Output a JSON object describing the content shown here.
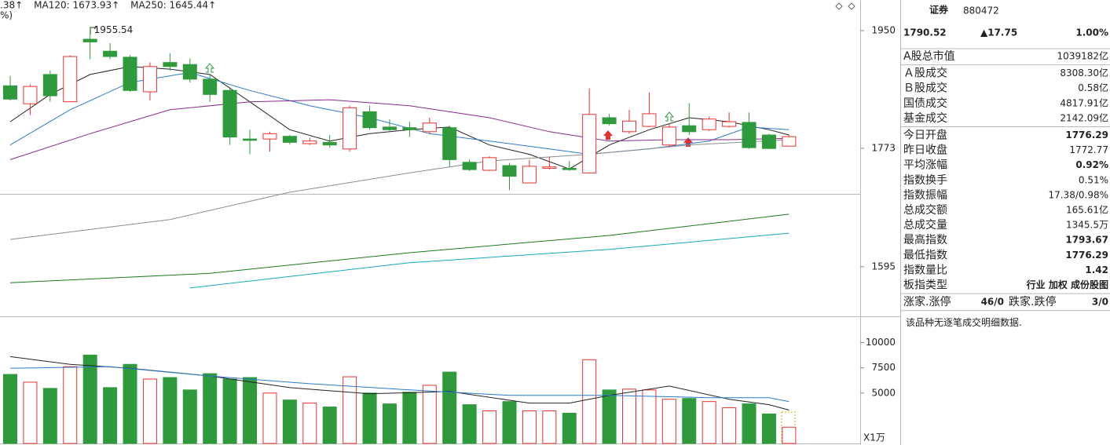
{
  "header": {
    "items": [
      {
        "text": ".38↑",
        "color": "#c03030"
      },
      {
        "text": "MA120: 1673.93↑",
        "color": "#1a7a1a"
      },
      {
        "text": "MA250: 1645.44↑",
        "color": "#17a9b8"
      }
    ],
    "subline": "%)"
  },
  "chart_data": [
    {
      "type": "candlestick",
      "open": [
        1867,
        1840,
        1884,
        1843,
        1937,
        1919,
        1910,
        1858,
        1902,
        1899,
        1877,
        1860,
        1787,
        1787,
        1791,
        1780,
        1782,
        1772,
        1828,
        1805,
        1804,
        1798,
        1804,
        1752,
        1740,
        1747,
        1721,
        1743,
        1743,
        1736,
        1819,
        1798,
        1806,
        1778,
        1807,
        1801,
        1806,
        1812,
        1793,
        1776.29
      ],
      "high": [
        1882,
        1869,
        1890,
        1913,
        1955.54,
        1931,
        1913,
        1902,
        1916,
        1908,
        1884,
        1863,
        1801,
        1798,
        1793,
        1789,
        1793,
        1837,
        1837,
        1817,
        1813,
        1819,
        1807,
        1756,
        1761,
        1751,
        1756,
        1760,
        1754,
        1863,
        1825,
        1831,
        1857,
        1810,
        1841,
        1821,
        1827,
        1827,
        1795,
        1793.67
      ],
      "low": [
        1845,
        1823,
        1843,
        1843,
        1907,
        1907,
        1858,
        1845,
        1890,
        1872,
        1843,
        1778,
        1764,
        1768,
        1779,
        1778,
        1774,
        1768,
        1801,
        1799,
        1790,
        1795,
        1745,
        1739,
        1739,
        1710,
        1721,
        1741,
        1739,
        1735,
        1807,
        1795,
        1805,
        1775,
        1793,
        1799,
        1804,
        1772,
        1772,
        1776.29
      ],
      "close": [
        1847,
        1866,
        1852,
        1911,
        1933,
        1911,
        1860,
        1896,
        1896,
        1877,
        1854,
        1790,
        1785,
        1795,
        1782,
        1784,
        1778,
        1834,
        1804,
        1801,
        1801,
        1811,
        1756,
        1741,
        1759,
        1731,
        1746,
        1745,
        1741,
        1824,
        1810,
        1814,
        1825,
        1805,
        1798,
        1817,
        1813,
        1774,
        1772.77,
        1790.52
      ],
      "up_color": "#e8312f",
      "down_color": "#2f9a3c",
      "ylim": [
        1524,
        1996
      ],
      "yticks": [
        1595,
        1773,
        1950
      ],
      "series": [
        {
          "color": "#222222",
          "x": [
            0,
            2,
            4,
            6,
            8,
            10,
            12,
            14,
            16,
            18,
            20,
            22,
            24,
            26,
            28,
            30,
            32,
            34,
            36,
            38,
            39
          ],
          "values": [
            1813,
            1854,
            1884,
            1896,
            1892,
            1884,
            1843,
            1801,
            1784,
            1795,
            1801,
            1805,
            1778,
            1764,
            1742,
            1778,
            1801,
            1819,
            1813,
            1801,
            1793
          ]
        },
        {
          "color": "#2b7bd0",
          "x": [
            0,
            3,
            6,
            9,
            12,
            15,
            18,
            21,
            24,
            27,
            29,
            32,
            35,
            37,
            39
          ],
          "values": [
            1778,
            1831,
            1872,
            1887,
            1860,
            1837,
            1819,
            1795,
            1784,
            1772,
            1764,
            1772,
            1784,
            1805,
            1801
          ]
        },
        {
          "color": "#8a2a8a",
          "x": [
            0,
            4,
            8,
            12,
            16,
            20,
            24,
            27,
            30,
            33,
            36,
            39
          ],
          "values": [
            1756,
            1795,
            1831,
            1843,
            1846,
            1837,
            1819,
            1798,
            1784,
            1786,
            1786,
            1788
          ]
        },
        {
          "color": "#8c8c8c",
          "x": [
            0,
            8,
            14,
            20,
            24,
            29,
            34,
            39
          ],
          "values": [
            1636,
            1666,
            1707,
            1736,
            1754,
            1764,
            1778,
            1786
          ]
        },
        {
          "color": "#1a7a1a",
          "x": [
            0,
            10,
            20,
            30,
            39
          ],
          "values": [
            1571,
            1585,
            1616,
            1642,
            1673.93
          ]
        },
        {
          "color": "#17a9b8",
          "x": [
            9,
            20,
            30,
            39
          ],
          "values": [
            1563,
            1601,
            1621,
            1645.44
          ]
        }
      ]
    },
    {
      "type": "bar",
      "values": [
        6846,
        6077,
        5461,
        7615,
        8769,
        5538,
        7846,
        6384,
        6538,
        5308,
        6923,
        6384,
        6538,
        5000,
        4308,
        4000,
        3615,
        6615,
        5000,
        3923,
        5077,
        5769,
        7077,
        3846,
        3231,
        4154,
        3231,
        3231,
        3000,
        8308,
        5308,
        5385,
        5308,
        4385,
        4462,
        4154,
        3538,
        3923,
        2923,
        1615
      ],
      "ylim": [
        0,
        12460
      ],
      "yticks": [
        5000,
        7500,
        10000
      ],
      "unit_label": "X1万",
      "series": [
        {
          "color": "#222222",
          "x": [
            0,
            3,
            6,
            10,
            14,
            18,
            22,
            26,
            28,
            30,
            33,
            36,
            38,
            39
          ],
          "values": [
            8615,
            7846,
            7461,
            6692,
            5538,
            4923,
            5154,
            4000,
            4000,
            4769,
            5692,
            4385,
            3846,
            3308
          ]
        },
        {
          "color": "#2b7bd0",
          "x": [
            0,
            5,
            10,
            15,
            20,
            25,
            30,
            35,
            38,
            39
          ],
          "values": [
            7461,
            7615,
            6692,
            5923,
            5308,
            4769,
            4769,
            4538,
            4538,
            4154
          ]
        }
      ]
    }
  ],
  "panel": {
    "name": "证券",
    "code": "880472",
    "price": "1790.52",
    "change": "▲17.75",
    "change_pct": "1.00%",
    "quote_color": "#e8312f",
    "groups": [
      [
        {
          "label": "A股总市值",
          "value": "1039182亿"
        }
      ],
      [
        {
          "label": "Ａ股成交",
          "value": "8308.30亿"
        },
        {
          "label": "Ｂ股成交",
          "value": "0.58亿"
        },
        {
          "label": "国债成交",
          "value": "4817.91亿"
        },
        {
          "label": "基金成交",
          "value": "2142.09亿"
        }
      ],
      [
        {
          "label": "今日开盘",
          "value": "1776.29",
          "color": "#e8312f"
        },
        {
          "label": "昨日收盘",
          "value": "1772.77"
        },
        {
          "label": "平均涨幅",
          "value": "0.92%",
          "color": "#e8312f"
        },
        {
          "label": "指数换手",
          "value": "0.51%"
        },
        {
          "label": "指数振幅",
          "value": "17.38/0.98%"
        },
        {
          "label": "总成交额",
          "value": "165.61亿"
        },
        {
          "label": "总成交量",
          "value": "1345.5万"
        },
        {
          "label": "最高指数",
          "value": "1793.67",
          "color": "#e8312f"
        },
        {
          "label": "最低指数",
          "value": "1776.29",
          "color": "#e8312f"
        },
        {
          "label": "指数量比",
          "value": "1.42",
          "color": "#e8312f"
        },
        {
          "label": "板指类型",
          "value": "行业 加权 成份股图",
          "color": "#555555"
        }
      ],
      [
        {
          "label": "涨家.涨停",
          "value": "46/0",
          "color": "#e8312f",
          "label2": "跌家.跌停",
          "value2": "3/0",
          "color2": "#2f9a3c"
        }
      ]
    ],
    "note": "该品种无逐笔成交明细数据."
  }
}
